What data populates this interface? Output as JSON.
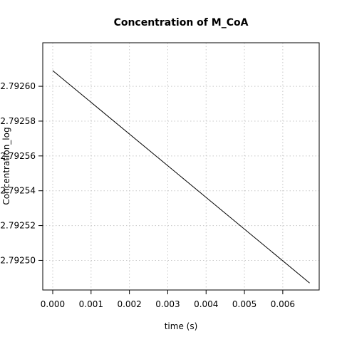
{
  "chart_data": {
    "type": "line",
    "title": "Concentration of M_CoA",
    "xlabel": "time (s)",
    "ylabel": "Concentration_log",
    "xlim": [
      -0.00026,
      0.00695
    ],
    "ylim": [
      2.792483,
      2.792625
    ],
    "x_ticks": [
      0.0,
      0.001,
      0.002,
      0.003,
      0.004,
      0.005,
      0.006
    ],
    "x_tick_labels": [
      "0.000",
      "0.001",
      "0.002",
      "0.003",
      "0.004",
      "0.005",
      "0.006"
    ],
    "y_ticks": [
      2.7925,
      2.79252,
      2.79254,
      2.79256,
      2.79258,
      2.7926
    ],
    "y_tick_labels": [
      "2.79250",
      "2.79252",
      "2.79254",
      "2.79256",
      "2.79258",
      "2.79260"
    ],
    "grid": true,
    "series": [
      {
        "x": [
          0.0,
          0.0067
        ],
        "y": [
          2.792609,
          2.792487
        ]
      }
    ]
  }
}
